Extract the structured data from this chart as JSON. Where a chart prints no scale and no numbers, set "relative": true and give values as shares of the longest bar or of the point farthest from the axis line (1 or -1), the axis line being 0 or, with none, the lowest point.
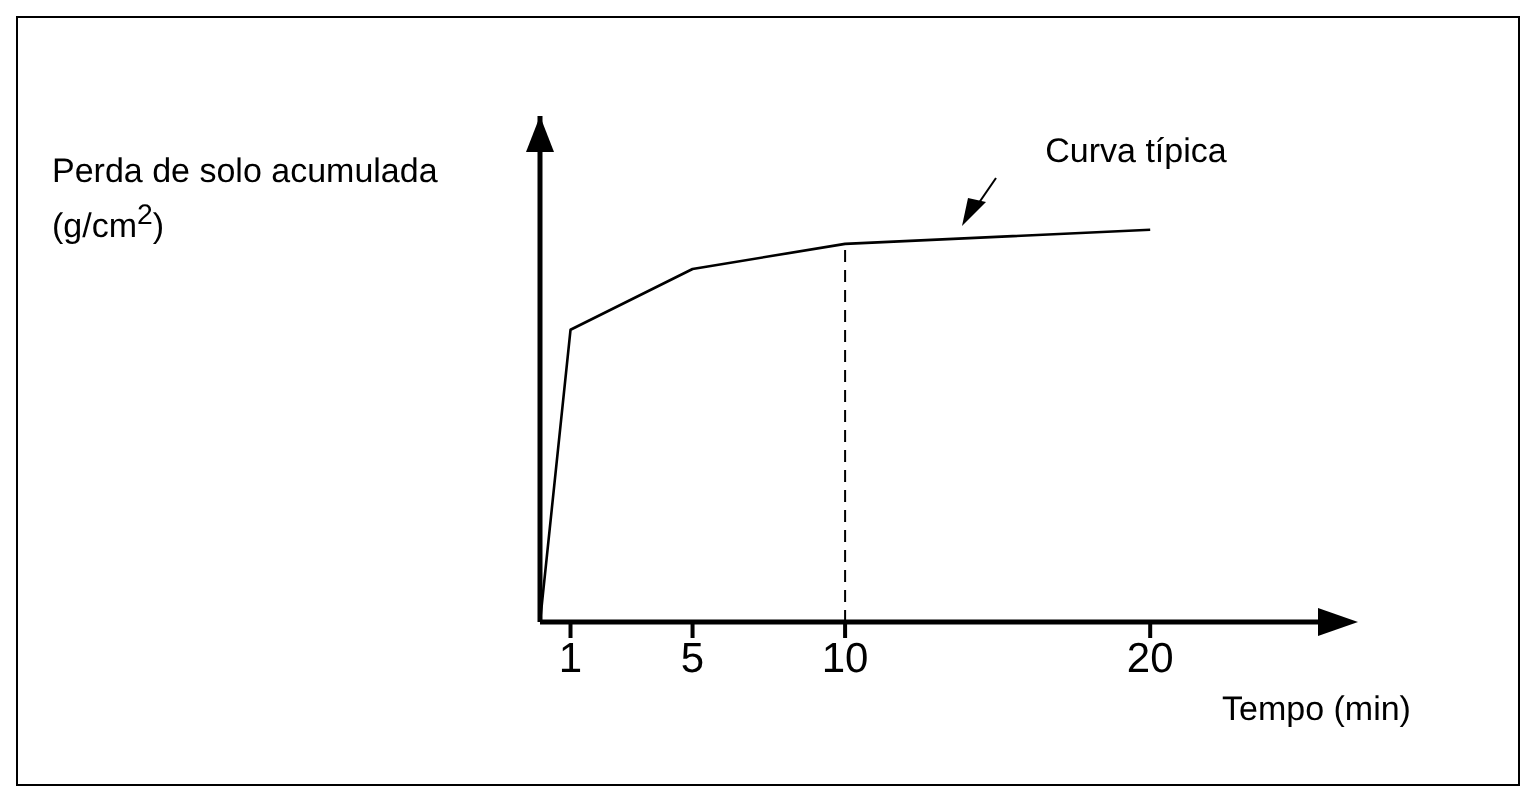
{
  "chart_data": {
    "type": "line",
    "relative": true,
    "xlabel": "Tempo (min)",
    "ylabel": "Perda de solo acumulada (g/cm$^{2}$)",
    "x": [
      0,
      1,
      5,
      10,
      20
    ],
    "series": [
      {
        "color": "#000000",
        "values": [
          0,
          0.745,
          0.9,
          0.964,
          1
        ]
      }
    ],
    "xlim": [
      0,
      25.5
    ],
    "xticks": [
      1,
      5,
      10,
      20
    ],
    "ref_lines": [
      {
        "axis": "x",
        "value": 10,
        "line_style": "dashed",
        "color": "#000000"
      }
    ],
    "annotations": [
      "Curva típica"
    ],
    "grid": false,
    "legend": false,
    "marker": "none",
    "line_style": "solid"
  }
}
